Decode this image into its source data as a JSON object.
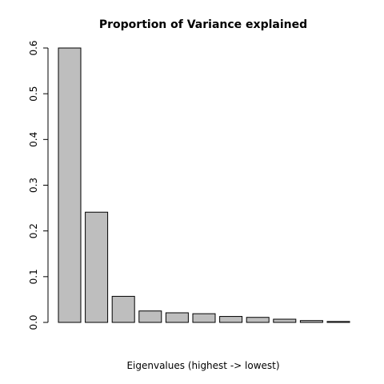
{
  "chart_data": {
    "type": "bar",
    "title": "Proportion of Variance explained",
    "xlabel": "Eigenvalues (highest -> lowest)",
    "ylabel": "",
    "ylim": [
      0,
      0.6
    ],
    "yticks": [
      "0.0",
      "0.1",
      "0.2",
      "0.3",
      "0.4",
      "0.5",
      "0.6"
    ],
    "values": [
      0.6,
      0.241,
      0.057,
      0.025,
      0.021,
      0.019,
      0.013,
      0.011,
      0.007,
      0.004,
      0.002
    ],
    "bar_fill": "#bebebe",
    "bar_stroke": "#000000",
    "grid": false,
    "legend": "none"
  }
}
